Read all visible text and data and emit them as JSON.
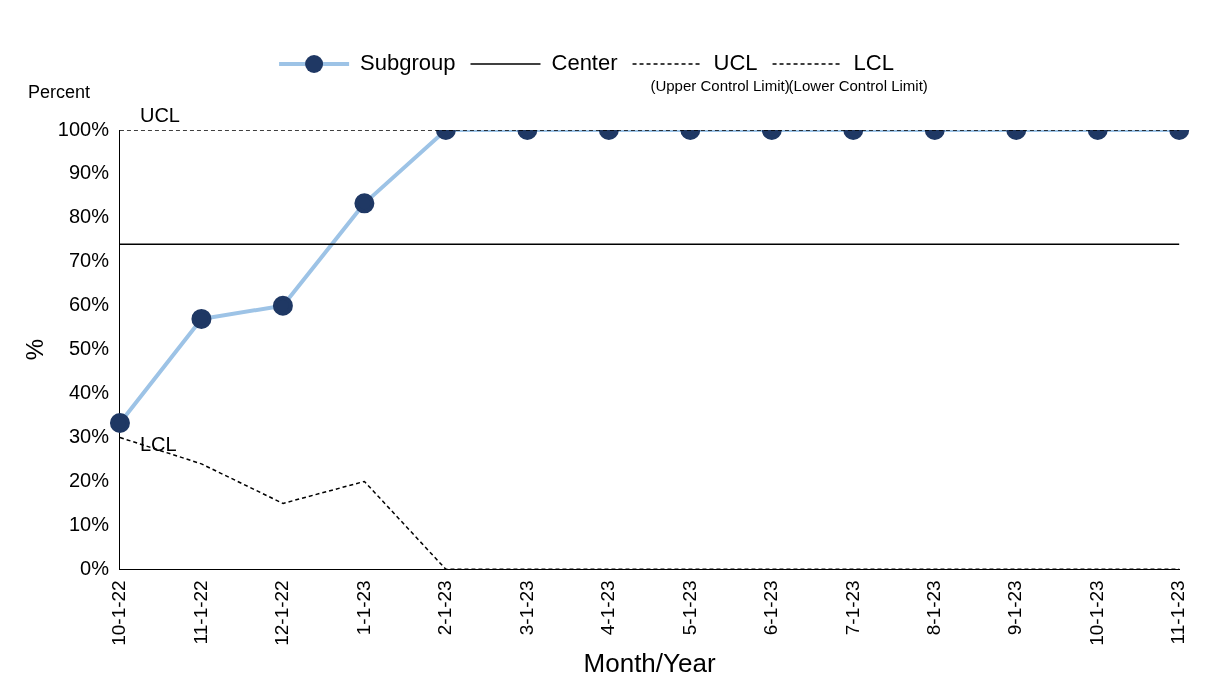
{
  "chart_data": {
    "type": "line",
    "xlabel": "Month/Year",
    "ylabel": "%",
    "categories": [
      "10-1-22",
      "11-1-22",
      "12-1-22",
      "1-1-23",
      "2-1-23",
      "3-1-23",
      "4-1-23",
      "5-1-23",
      "6-1-23",
      "7-1-23",
      "8-1-23",
      "9-1-23",
      "10-1-23",
      "11-1-23"
    ],
    "series": [
      {
        "name": "Subgroup",
        "color": "#9dc3e6",
        "colors": [
          "#1f3864",
          "#1f3864",
          "#1f3864",
          "#1f3864",
          "#1f3864",
          "#1f3864",
          "#1f3864",
          "#1f3864",
          "#1f3864",
          "#1f3864",
          "#1f3864",
          "#1f3864",
          "#1f3864",
          "#1f3864"
        ],
        "marker": "circle",
        "line_style": "solid",
        "values": [
          33.3,
          57,
          60,
          83.3,
          100,
          100,
          100,
          100,
          100,
          100,
          100,
          100,
          100,
          100
        ]
      },
      {
        "name": "Center",
        "color": "#000000",
        "marker": "none",
        "line_style": "solid",
        "values": [
          74,
          74,
          74,
          74,
          74,
          74,
          74,
          74,
          74,
          74,
          74,
          74,
          74,
          74
        ]
      },
      {
        "name": "UCL",
        "color": "#000000",
        "marker": "none",
        "line_style": "dashed",
        "values": [
          100,
          100,
          100,
          100,
          100,
          100,
          100,
          100,
          100,
          100,
          100,
          100,
          100,
          100
        ]
      },
      {
        "name": "LCL",
        "color": "#000000",
        "marker": "none",
        "line_style": "dashed",
        "values": [
          30,
          24,
          15,
          20,
          0,
          0,
          0,
          0,
          0,
          0,
          0,
          0,
          0,
          0
        ]
      }
    ],
    "ylim": [
      0,
      100
    ],
    "yticks": [
      {
        "value": 0,
        "label": "0%"
      },
      {
        "value": 10,
        "label": "10%"
      },
      {
        "value": 20,
        "label": "20%"
      },
      {
        "value": 30,
        "label": "30%"
      },
      {
        "value": 40,
        "label": "40%"
      },
      {
        "value": 50,
        "label": "50%"
      },
      {
        "value": 60,
        "label": "60%"
      },
      {
        "value": 70,
        "label": "70%"
      },
      {
        "value": 80,
        "label": "80%"
      },
      {
        "value": 90,
        "label": "90%"
      },
      {
        "value": 100,
        "label": "100%"
      }
    ],
    "grid": false,
    "legend": "top",
    "annotations": [
      "Percent",
      "(Upper Control Limit)",
      "(Lower Control Limit)",
      {
        "text": "UCL",
        "x": "10-1-22",
        "y": 100
      },
      {
        "text": "LCL",
        "x": "10-1-22",
        "y": 30
      }
    ]
  }
}
